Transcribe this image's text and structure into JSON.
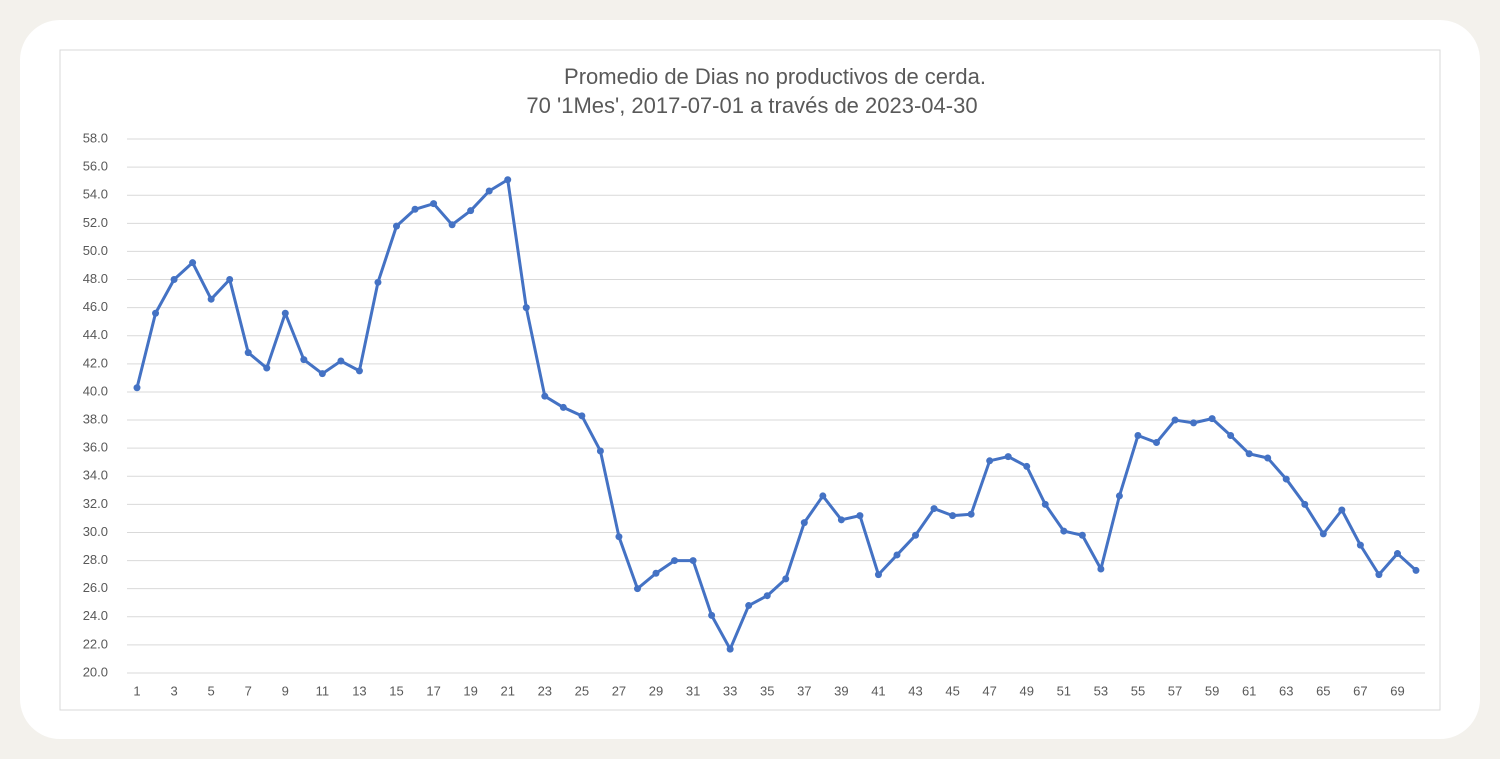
{
  "chart_data": {
    "type": "line",
    "title": "Promedio de Dias no productivos de cerda.",
    "subtitle": "70 '1Mes', 2017-07-01 a través de 2023-04-30",
    "categories": [
      "1",
      null,
      "3",
      null,
      "5",
      null,
      "7",
      null,
      "9",
      null,
      "11",
      null,
      "13",
      null,
      "15",
      null,
      "17",
      null,
      "19",
      null,
      "21",
      null,
      "23",
      null,
      "25",
      null,
      "27",
      null,
      "29",
      null,
      "31",
      null,
      "33",
      null,
      "35",
      null,
      "37",
      null,
      "39",
      null,
      "41",
      null,
      "43",
      null,
      "45",
      null,
      "47",
      null,
      "49",
      null,
      "51",
      null,
      "53",
      null,
      "55",
      null,
      "57",
      null,
      "59",
      null,
      "61",
      null,
      "63",
      null,
      "65",
      null,
      "67",
      null,
      "69",
      null
    ],
    "values": [
      40.3,
      45.6,
      48.0,
      49.2,
      46.6,
      48.0,
      42.8,
      41.7,
      45.6,
      42.3,
      41.3,
      42.2,
      41.5,
      47.8,
      51.8,
      53.0,
      53.4,
      51.9,
      52.9,
      54.3,
      55.1,
      46.0,
      39.7,
      38.9,
      38.3,
      35.8,
      29.7,
      26.0,
      27.1,
      28.0,
      28.0,
      24.1,
      21.7,
      24.8,
      25.5,
      26.7,
      30.7,
      32.6,
      30.9,
      31.2,
      27.0,
      28.4,
      29.8,
      31.7,
      31.2,
      31.3,
      35.1,
      35.4,
      34.7,
      32.0,
      30.1,
      29.8,
      27.4,
      32.6,
      36.9,
      36.4,
      38.0,
      37.8,
      38.1,
      36.9,
      35.6,
      35.3,
      33.8,
      32.0,
      29.9,
      31.6,
      29.1,
      27.0,
      28.5,
      27.3
    ],
    "color": "#4472c4",
    "ylim": [
      20,
      58
    ],
    "yticks": [
      {
        "value": 20,
        "label": "20.0"
      },
      {
        "value": 22,
        "label": "22.0"
      },
      {
        "value": 24,
        "label": "24.0"
      },
      {
        "value": 26,
        "label": "26.0"
      },
      {
        "value": 28,
        "label": "28.0"
      },
      {
        "value": 30,
        "label": "30.0"
      },
      {
        "value": 32,
        "label": "32.0"
      },
      {
        "value": 34,
        "label": "34.0"
      },
      {
        "value": 36,
        "label": "36.0"
      },
      {
        "value": 38,
        "label": "38.0"
      },
      {
        "value": 40,
        "label": "40.0"
      },
      {
        "value": 42,
        "label": "42.0"
      },
      {
        "value": 44,
        "label": "44.0"
      },
      {
        "value": 46,
        "label": "46.0"
      },
      {
        "value": 48,
        "label": "48.0"
      },
      {
        "value": 50,
        "label": "50.0"
      },
      {
        "value": 52,
        "label": "52.0"
      },
      {
        "value": 54,
        "label": "54.0"
      },
      {
        "value": 56,
        "label": "56.0"
      },
      {
        "value": 58,
        "label": "58.0"
      }
    ],
    "grid": true
  }
}
